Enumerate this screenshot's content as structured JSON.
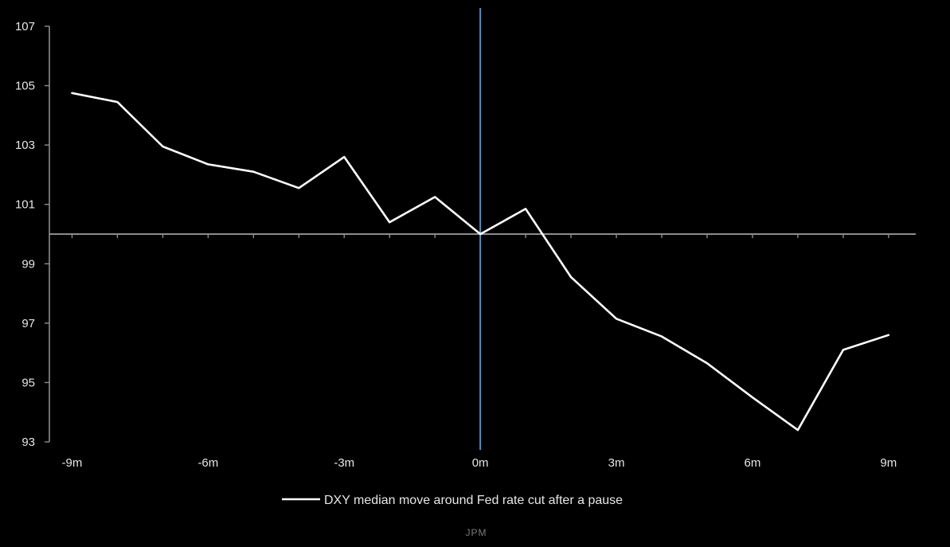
{
  "chart_data": {
    "type": "line",
    "title": "",
    "xlabel": "",
    "ylabel": "",
    "x": [
      -9,
      -8,
      -7,
      -6,
      -5,
      -4,
      -3,
      -2,
      -1,
      0,
      1,
      2,
      3,
      4,
      5,
      6,
      7,
      8,
      9
    ],
    "x_tick_labels": [
      "-9m",
      "-6m",
      "-3m",
      "0m",
      "3m",
      "6m",
      "9m"
    ],
    "x_tick_values": [
      -9,
      -6,
      -3,
      0,
      3,
      6,
      9
    ],
    "y_tick_values": [
      93,
      95,
      97,
      99,
      101,
      103,
      105,
      107
    ],
    "y_tick_labels": [
      "93",
      "95",
      "97",
      "99",
      "101",
      "103",
      "105",
      "107"
    ],
    "ylim": [
      93,
      107
    ],
    "xlim": [
      -9.5,
      9.6
    ],
    "baseline": 100,
    "event_x": 0,
    "grid": false,
    "legend_position": "bottom-center",
    "series": [
      {
        "name": "DXY median move around Fed rate cut after a pause",
        "color": "#ffffff",
        "values": [
          104.75,
          104.45,
          102.95,
          102.35,
          102.1,
          101.55,
          102.6,
          100.4,
          101.25,
          100.0,
          100.85,
          98.55,
          97.15,
          96.55,
          95.65,
          94.5,
          93.4,
          96.1,
          96.6
        ]
      }
    ],
    "colors": {
      "background": "#000000",
      "axis": "#8c8c8c",
      "event_line": "#4f8fd6",
      "text": "#e6e6e6"
    }
  },
  "source": "JPM"
}
